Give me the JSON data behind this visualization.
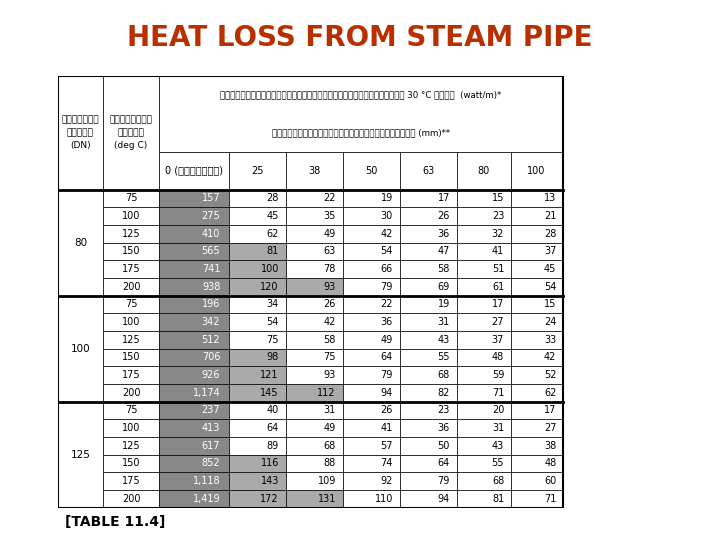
{
  "title": "HEAT LOSS FROM STEAM PIPE",
  "subtitle_label": "[TABLE 11.4]",
  "title_color": "#B83000",
  "bg_color": "#FFFFFF",
  "header_row1_thai": "ความร้อนสูญเสียที่คูณภูมิสิ่งแวดล้อม 30 °C ลดลง  (watt/m)*",
  "header_row2_thai": "ความหนาของฉนวนแคลเชียมชิดเกต (mm)**",
  "col_headers": [
    "0 (ไม่หุ้ม)",
    "25",
    "38",
    "50",
    "63",
    "80",
    "100"
  ],
  "pipe_sizes": [
    80,
    100,
    125
  ],
  "temp_values": [
    75,
    100,
    125,
    150,
    175,
    200
  ],
  "data": {
    "80": {
      "75": [
        "157",
        "28",
        "22",
        "19",
        "17",
        "15",
        "13"
      ],
      "100": [
        "275",
        "45",
        "35",
        "30",
        "26",
        "23",
        "21"
      ],
      "125": [
        "410",
        "62",
        "49",
        "42",
        "36",
        "32",
        "28"
      ],
      "150": [
        "565",
        "81",
        "63",
        "54",
        "47",
        "41",
        "37"
      ],
      "175": [
        "741",
        "100",
        "78",
        "66",
        "58",
        "51",
        "45"
      ],
      "200": [
        "938",
        "120",
        "93",
        "79",
        "69",
        "61",
        "54"
      ]
    },
    "100": {
      "75": [
        "196",
        "34",
        "26",
        "22",
        "19",
        "17",
        "15"
      ],
      "100": [
        "342",
        "54",
        "42",
        "36",
        "31",
        "27",
        "24"
      ],
      "125": [
        "512",
        "75",
        "58",
        "49",
        "43",
        "37",
        "33"
      ],
      "150": [
        "706",
        "98",
        "75",
        "64",
        "55",
        "48",
        "42"
      ],
      "175": [
        "926",
        "121",
        "93",
        "79",
        "68",
        "59",
        "52"
      ],
      "200": [
        "1,174",
        "145",
        "112",
        "94",
        "82",
        "71",
        "62"
      ]
    },
    "125": {
      "75": [
        "237",
        "40",
        "31",
        "26",
        "23",
        "20",
        "17"
      ],
      "100": [
        "413",
        "64",
        "49",
        "41",
        "36",
        "31",
        "27"
      ],
      "125": [
        "617",
        "89",
        "68",
        "57",
        "50",
        "43",
        "38"
      ],
      "150": [
        "852",
        "116",
        "88",
        "74",
        "64",
        "55",
        "48"
      ],
      "175": [
        "1,118",
        "143",
        "109",
        "92",
        "79",
        "68",
        "60"
      ],
      "200": [
        "1,419",
        "172",
        "131",
        "110",
        "94",
        "81",
        "71"
      ]
    }
  },
  "grey_dark": "#888888",
  "grey_light": "#AAAAAA",
  "white": "#FFFFFF",
  "black": "#000000",
  "grey_cells": {
    "80": {
      "75": [
        0
      ],
      "100": [
        0
      ],
      "125": [
        0
      ],
      "150": [
        0,
        1
      ],
      "175": [
        0,
        1
      ],
      "200": [
        0,
        1,
        2
      ]
    },
    "100": {
      "75": [
        0
      ],
      "100": [
        0
      ],
      "125": [
        0
      ],
      "150": [
        0,
        1
      ],
      "175": [
        0,
        1
      ],
      "200": [
        0,
        1,
        2
      ]
    },
    "125": {
      "75": [
        0
      ],
      "100": [
        0
      ],
      "125": [
        0
      ],
      "150": [
        0,
        1
      ],
      "175": [
        0,
        1
      ],
      "200": [
        0,
        1,
        2
      ]
    }
  }
}
